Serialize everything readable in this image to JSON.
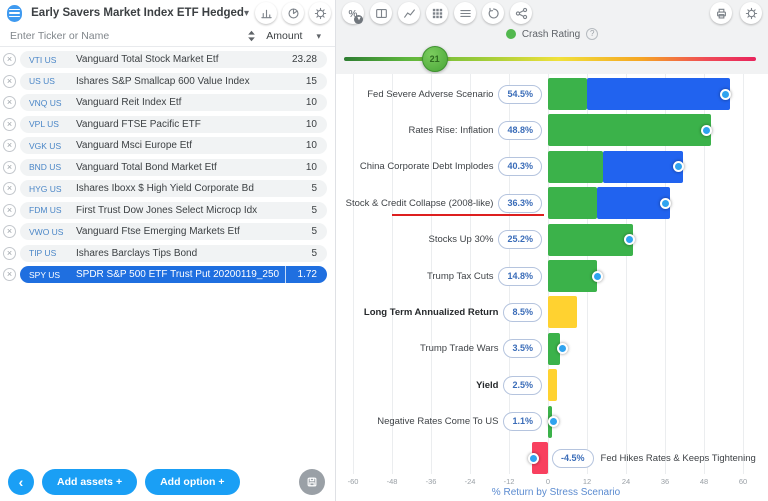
{
  "left_panel": {
    "portfolio_name": "Early Savers Market Index ETF Hedged",
    "header_buttons": [
      "bar-chart-icon",
      "pie-chart-icon",
      "gear-icon"
    ],
    "search_placeholder": "Enter Ticker or Name",
    "amount_header": "Amount",
    "holdings": [
      {
        "ticker": "VTI US",
        "name": "Vanguard Total Stock Market Etf",
        "amount": "23.28",
        "selected": false
      },
      {
        "ticker": "US US",
        "name": "Ishares S&P Smallcap 600 Value Index",
        "amount": "15",
        "selected": false
      },
      {
        "ticker": "VNQ US",
        "name": "Vanguard Reit Index Etf",
        "amount": "10",
        "selected": false
      },
      {
        "ticker": "VPL US",
        "name": "Vanguard FTSE Pacific ETF",
        "amount": "10",
        "selected": false
      },
      {
        "ticker": "VGK US",
        "name": "Vanguard Msci Europe Etf",
        "amount": "10",
        "selected": false
      },
      {
        "ticker": "BND US",
        "name": "Vanguard Total Bond Market Etf",
        "amount": "10",
        "selected": false
      },
      {
        "ticker": "HYG US",
        "name": "Ishares Iboxx $ High Yield Corporate Bd",
        "amount": "5",
        "selected": false
      },
      {
        "ticker": "FDM US",
        "name": "First Trust Dow Jones Select Microcp Idx",
        "amount": "5",
        "selected": false
      },
      {
        "ticker": "VWO US",
        "name": "Vanguard Ftse Emerging Markets Etf",
        "amount": "5",
        "selected": false
      },
      {
        "ticker": "TIP US",
        "name": "Ishares Barclays Tips Bond",
        "amount": "5",
        "selected": false
      },
      {
        "ticker": "SPY US",
        "name": "SPDR S&P 500 ETF Trust Put 20200119_250",
        "amount": "1.72",
        "selected": true
      }
    ],
    "footer": {
      "add_assets_label": "Add assets +",
      "add_option_label": "Add option +"
    }
  },
  "right_panel": {
    "toolbar_left": [
      "percent-icon",
      "columns-icon",
      "line-chart-icon",
      "grid-icon",
      "list-icon",
      "history-icon",
      "share-icon"
    ],
    "toolbar_right": [
      "printer-icon",
      "gear-icon"
    ],
    "crash_rating": {
      "label": "Crash Rating",
      "value": "21",
      "position_pct": 22
    }
  },
  "chart_data": {
    "type": "bar",
    "orientation": "horizontal",
    "xlabel": "% Return by Stress Scenario",
    "xticks": [
      -60,
      -48,
      -36,
      -24,
      -12,
      0,
      12,
      24,
      36,
      48,
      60
    ],
    "xlim": [
      -66,
      66
    ],
    "grid": true,
    "colors": {
      "green": "#3bb24a",
      "blue": "#2163ef",
      "yellow": "#ffd230",
      "red": "#f8405f",
      "marker": "#2fa3ef"
    },
    "rows": [
      {
        "label": "Fed Severe Adverse Scenario",
        "value_label": "54.5%",
        "value": 54.5,
        "marker": 54.5,
        "segments": [
          {
            "color": "green",
            "from": 0,
            "to": 12
          },
          {
            "color": "blue",
            "from": 12,
            "to": 56
          }
        ]
      },
      {
        "label": "Rates Rise: Inflation",
        "value_label": "48.8%",
        "value": 48.8,
        "marker": 48.8,
        "segments": [
          {
            "color": "green",
            "from": 0,
            "to": 50
          }
        ]
      },
      {
        "label": "China Corporate Debt Implodes",
        "value_label": "40.3%",
        "value": 40.3,
        "marker": 40.3,
        "segments": [
          {
            "color": "green",
            "from": 0,
            "to": 17
          },
          {
            "color": "blue",
            "from": 17,
            "to": 41.5
          }
        ]
      },
      {
        "label": "Stock & Credit Collapse (2008-like)",
        "value_label": "36.3%",
        "value": 36.3,
        "marker": 36.3,
        "underline": true,
        "segments": [
          {
            "color": "green",
            "from": 0,
            "to": 15
          },
          {
            "color": "blue",
            "from": 15,
            "to": 37.5
          }
        ]
      },
      {
        "label": "Stocks Up 30%",
        "value_label": "25.2%",
        "value": 25.2,
        "marker": 25.2,
        "segments": [
          {
            "color": "green",
            "from": 0,
            "to": 26
          }
        ]
      },
      {
        "label": "Trump Tax Cuts",
        "value_label": "14.8%",
        "value": 14.8,
        "marker": 15.3,
        "segments": [
          {
            "color": "green",
            "from": 0,
            "to": 15
          }
        ]
      },
      {
        "label": "Long Term Annualized Return",
        "value_label": "8.5%",
        "value": 8.5,
        "bold": true,
        "segments": [
          {
            "color": "yellow",
            "from": 0,
            "to": 8.8
          }
        ]
      },
      {
        "label": "Trump Trade Wars",
        "value_label": "3.5%",
        "value": 3.5,
        "marker": 4.4,
        "segments": [
          {
            "color": "green",
            "from": 0,
            "to": 3.7
          }
        ]
      },
      {
        "label": "Yield",
        "value_label": "2.5%",
        "value": 2.5,
        "bold": true,
        "segments": [
          {
            "color": "yellow",
            "from": 0,
            "to": 2.8
          }
        ]
      },
      {
        "label": "Negative Rates Come To US",
        "value_label": "1.1%",
        "value": 1.1,
        "marker": 1.8,
        "segments": [
          {
            "color": "green",
            "from": 0,
            "to": 1.3
          }
        ]
      },
      {
        "label": "Fed Hikes Rates & Keeps Tightening",
        "value_label": "-4.5%",
        "value": -4.5,
        "marker": -4.5,
        "label_side": "right",
        "segments": [
          {
            "color": "red",
            "from": -4.8,
            "to": 0
          }
        ]
      }
    ]
  }
}
